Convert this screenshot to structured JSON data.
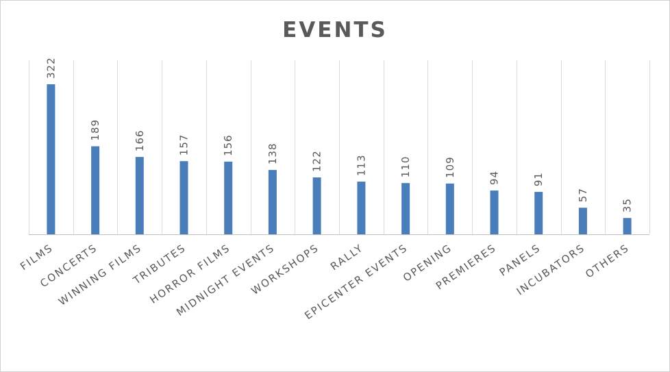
{
  "chart_data": {
    "type": "bar",
    "title": "EVENTS",
    "xlabel": "",
    "ylabel": "",
    "categories": [
      "FILMS",
      "CONCERTS",
      "WINNING FILMS",
      "TRIBUTES",
      "HORROR FILMS",
      "MIDNIGHT EVENTS",
      "WORKSHOPS",
      "RALLY",
      "EPICENTER EVENTS",
      "OPENING",
      "PREMIERES",
      "PANELS",
      "INCUBATORS",
      "OTHERS"
    ],
    "values": [
      322,
      189,
      166,
      157,
      156,
      138,
      122,
      113,
      110,
      109,
      94,
      91,
      57,
      35
    ],
    "ylim": [
      0,
      322
    ],
    "grid": "vertical category separators",
    "legend": "none",
    "data_labels": true,
    "colors": {
      "bar": "#4a7ebb",
      "text": "#595959",
      "grid": "#d9d9d9"
    }
  }
}
